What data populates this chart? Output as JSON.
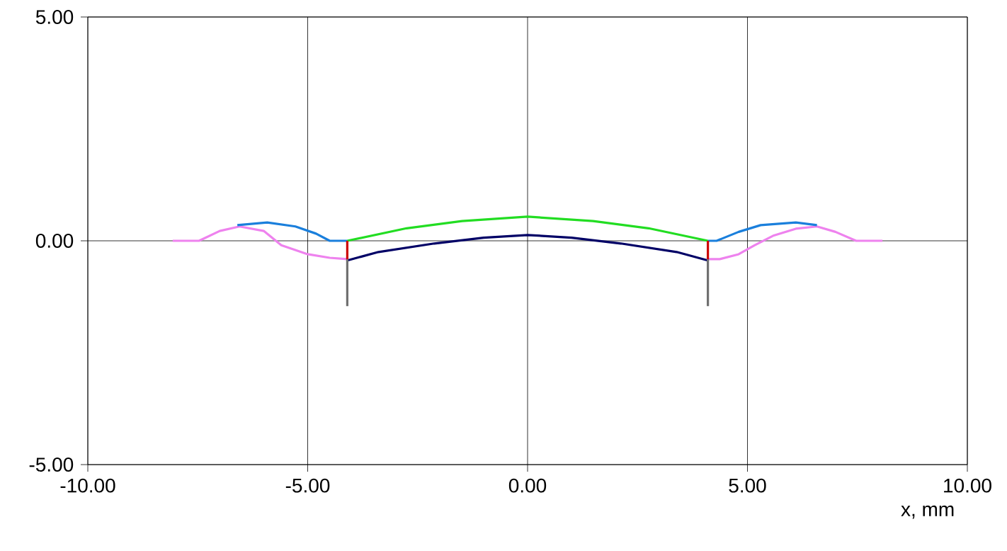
{
  "chart_data": {
    "type": "line",
    "xlabel": "x, mm",
    "xlim": [
      -10,
      10
    ],
    "ylim": [
      -5,
      5
    ],
    "xticks": [
      {
        "value": -10,
        "label": "-10.00"
      },
      {
        "value": -5,
        "label": "-5.00"
      },
      {
        "value": 0,
        "label": "0.00"
      },
      {
        "value": 5,
        "label": "5.00"
      },
      {
        "value": 10,
        "label": "10.00"
      }
    ],
    "yticks": [
      {
        "value": -5,
        "label": "-5.00"
      },
      {
        "value": 0,
        "label": "0.00"
      },
      {
        "value": 5,
        "label": "5.00"
      }
    ],
    "grid": true,
    "marker": "none",
    "line_style": "solid",
    "series": [
      {
        "color": "#ee82ee",
        "x": [
          -8.07,
          -7.47,
          -7.0,
          -6.55,
          -6.0,
          -5.6,
          -5.0,
          -4.5,
          -4.1,
          0,
          4.1,
          4.37,
          4.8,
          5.16,
          5.6,
          6.1,
          6.58,
          7.0,
          7.47,
          8.07
        ],
        "values": [
          0,
          0,
          0.22,
          0.32,
          0.22,
          -0.1,
          -0.3,
          -0.38,
          -0.41,
          null,
          -0.41,
          -0.41,
          -0.3,
          -0.1,
          0.12,
          0.27,
          0.32,
          0.2,
          0,
          0
        ]
      },
      {
        "color": "#1a7fdc",
        "x": [
          -6.6,
          -5.92,
          -5.28,
          -4.81,
          -4.5,
          -4.1,
          0,
          4.1,
          4.3,
          4.8,
          5.3,
          6.1,
          6.58
        ],
        "values": [
          0.35,
          0.41,
          0.32,
          0.16,
          0,
          0,
          null,
          0,
          0,
          0.2,
          0.35,
          0.41,
          0.35
        ]
      },
      {
        "color": "#22dd22",
        "x": [
          -4.1,
          -2.75,
          -1.49,
          0,
          1.49,
          2.75,
          4.1
        ],
        "values": [
          0,
          0.28,
          0.44,
          0.54,
          0.44,
          0.28,
          0
        ]
      },
      {
        "color": "#000066",
        "x": [
          -4.1,
          -3.39,
          -2.12,
          -1.0,
          0,
          1.0,
          2.12,
          3.39,
          4.1
        ],
        "values": [
          -0.44,
          -0.25,
          -0.06,
          0.07,
          0.13,
          0.07,
          -0.06,
          -0.25,
          -0.44
        ]
      },
      {
        "color": "#cc0000",
        "x": [
          -4.1,
          -4.1,
          0,
          4.1,
          4.1
        ],
        "values": [
          0,
          -0.41,
          null,
          0,
          -0.41
        ]
      },
      {
        "color": "#707070",
        "x": [
          -4.1,
          -4.1,
          0,
          4.1,
          4.1
        ],
        "values": [
          -0.41,
          -1.46,
          null,
          -0.41,
          -1.46
        ]
      }
    ]
  }
}
